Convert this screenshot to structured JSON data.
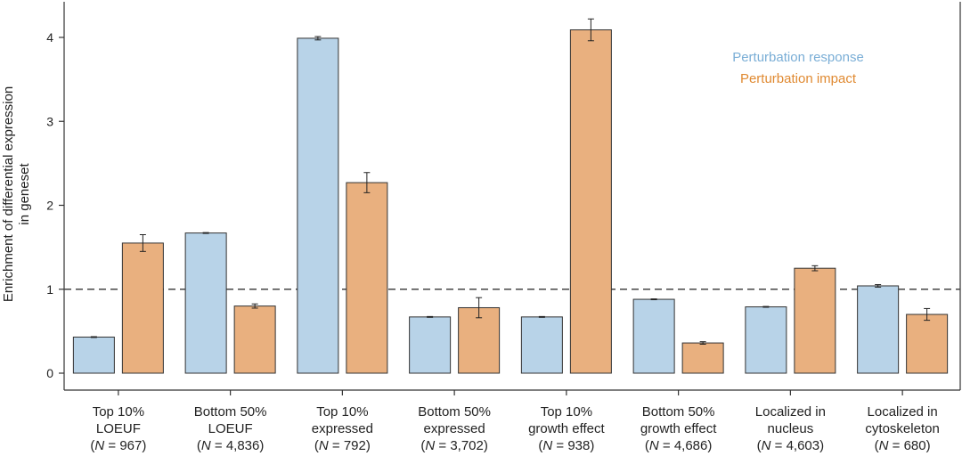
{
  "chart_data": {
    "type": "bar",
    "ylabel": [
      "Enrichment of differential expression",
      "in geneset"
    ],
    "ylim": [
      0,
      4.2
    ],
    "yticks": [
      0,
      1,
      2,
      3,
      4
    ],
    "reference_line": 1,
    "legend_position": "top-right",
    "categories": [
      {
        "lines": [
          "Top 10%",
          "LOEUF"
        ],
        "n_label": "967"
      },
      {
        "lines": [
          "Bottom 50%",
          "LOEUF"
        ],
        "n_label": "4,836"
      },
      {
        "lines": [
          "Top 10%",
          "expressed"
        ],
        "n_label": "792"
      },
      {
        "lines": [
          "Bottom 50%",
          "expressed"
        ],
        "n_label": "3,702"
      },
      {
        "lines": [
          "Top 10%",
          "growth effect"
        ],
        "n_label": "938"
      },
      {
        "lines": [
          "Bottom 50%",
          "growth effect"
        ],
        "n_label": "4,686"
      },
      {
        "lines": [
          "Localized in",
          "nucleus"
        ],
        "n_label": "4,603"
      },
      {
        "lines": [
          "Localized in",
          "cytoskeleton"
        ],
        "n_label": "680"
      }
    ],
    "series": [
      {
        "name": "Perturbation response",
        "color": "#b8d3e8",
        "legend_color": "#7aaed6",
        "values": [
          0.43,
          1.67,
          3.99,
          0.67,
          0.67,
          0.88,
          0.79,
          1.04
        ],
        "errors": [
          0.005,
          0.005,
          0.02,
          0.005,
          0.005,
          0.005,
          0.005,
          0.015
        ]
      },
      {
        "name": "Perturbation impact",
        "color": "#e9b07f",
        "legend_color": "#e08a32",
        "values": [
          1.55,
          0.8,
          2.27,
          0.78,
          4.09,
          0.36,
          1.25,
          0.7
        ],
        "errors": [
          0.1,
          0.025,
          0.12,
          0.12,
          0.13,
          0.015,
          0.03,
          0.07
        ]
      }
    ]
  }
}
